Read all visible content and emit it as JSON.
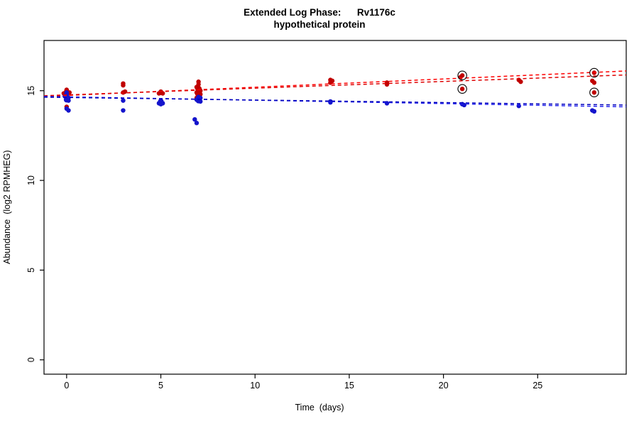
{
  "chart_data": {
    "type": "scatter",
    "title": "Extended Log Phase:      Rv1176c",
    "subtitle": "hypothetical protein",
    "xlabel": "Time  (days)",
    "ylabel": "Abundance  (log2 RPMHEG)",
    "xlim": [
      -1.2,
      29.7
    ],
    "ylim": [
      -0.8,
      17.8
    ],
    "xticks": [
      0,
      5,
      10,
      15,
      20,
      25
    ],
    "yticks": [
      0,
      5,
      10,
      15
    ],
    "grid": false,
    "legend": "none",
    "series": [
      {
        "name": "red-condition",
        "color": "#C00000",
        "marker": "filled-circle",
        "points": [
          [
            0,
            15.05
          ],
          [
            0,
            14.95,
            3.8
          ],
          [
            0,
            14.9
          ],
          [
            0.15,
            14.9
          ],
          [
            -0.15,
            14.85
          ],
          [
            0,
            14.85
          ],
          [
            0,
            14.8,
            4.2
          ],
          [
            0,
            14.75
          ],
          [
            0,
            14.65
          ],
          [
            0,
            14.1
          ],
          [
            3,
            15.4
          ],
          [
            3,
            15.3
          ],
          [
            3.1,
            14.95
          ],
          [
            3,
            14.9
          ],
          [
            5,
            14.95
          ],
          [
            5,
            14.9,
            3.8
          ],
          [
            5.1,
            14.85
          ],
          [
            4.9,
            14.85
          ],
          [
            7,
            15.5
          ],
          [
            7,
            15.35
          ],
          [
            6.9,
            15.2
          ],
          [
            7,
            15.1,
            4.5
          ],
          [
            7.1,
            15.0
          ],
          [
            7,
            14.95,
            4.2
          ],
          [
            6.9,
            14.9
          ],
          [
            7,
            14.85,
            5
          ],
          [
            7.1,
            14.8
          ],
          [
            7,
            14.7
          ],
          [
            6.9,
            14.6
          ],
          [
            14,
            15.6
          ],
          [
            14.1,
            15.55
          ],
          [
            14,
            15.45
          ],
          [
            17,
            15.45
          ],
          [
            17,
            15.35
          ],
          [
            21,
            15.85
          ],
          [
            20.9,
            15.75
          ],
          [
            21,
            15.1
          ],
          [
            24,
            15.6
          ],
          [
            24.1,
            15.5
          ],
          [
            28,
            16.0
          ],
          [
            27.9,
            15.55
          ],
          [
            28,
            15.45
          ],
          [
            28,
            14.9
          ]
        ]
      },
      {
        "name": "blue-condition",
        "color": "#1414CC",
        "marker": "filled-circle",
        "points": [
          [
            0,
            14.9
          ],
          [
            0,
            14.8
          ],
          [
            -0.1,
            14.7
          ],
          [
            0,
            14.65,
            4
          ],
          [
            0.1,
            14.6
          ],
          [
            0,
            14.55
          ],
          [
            0,
            14.5,
            4
          ],
          [
            0.1,
            14.45
          ],
          [
            0,
            14.0
          ],
          [
            0.1,
            13.9
          ],
          [
            3,
            14.45
          ],
          [
            3,
            13.9
          ],
          [
            5,
            14.45
          ],
          [
            5,
            14.4,
            4
          ],
          [
            5.1,
            14.3
          ],
          [
            4.9,
            14.3
          ],
          [
            5,
            14.25
          ],
          [
            7,
            14.65
          ],
          [
            7.1,
            14.6
          ],
          [
            7,
            14.55,
            4.5
          ],
          [
            6.9,
            14.5
          ],
          [
            7,
            14.45,
            4
          ],
          [
            7.1,
            14.4
          ],
          [
            6.8,
            13.4
          ],
          [
            6.9,
            13.2
          ],
          [
            14,
            14.4
          ],
          [
            14,
            14.35
          ],
          [
            17,
            14.3
          ],
          [
            21,
            14.25
          ],
          [
            21.1,
            14.2
          ],
          [
            24,
            14.15
          ],
          [
            27.9,
            13.9
          ],
          [
            28,
            13.85
          ]
        ]
      }
    ],
    "trend_lines": [
      {
        "series": "red-condition",
        "color": "#FF0000",
        "style": "dashed",
        "from": [
          -1.2,
          14.68
        ],
        "to": [
          29.7,
          16.1
        ]
      },
      {
        "series": "red-condition",
        "color": "#DD0000",
        "style": "dashed",
        "from": [
          -1.2,
          14.72
        ],
        "to": [
          29.7,
          15.88
        ]
      },
      {
        "series": "blue-condition",
        "color": "#2222EE",
        "style": "dashed",
        "from": [
          -1.2,
          14.68
        ],
        "to": [
          29.7,
          14.1
        ]
      },
      {
        "series": "blue-condition",
        "color": "#0000BB",
        "style": "dashed",
        "from": [
          -1.2,
          14.64
        ],
        "to": [
          29.7,
          14.2
        ]
      }
    ],
    "outlier_circles": {
      "color": "#000000",
      "points": [
        [
          21,
          15.85
        ],
        [
          21,
          15.1
        ],
        [
          28,
          16.0
        ],
        [
          28,
          14.9
        ]
      ]
    }
  }
}
